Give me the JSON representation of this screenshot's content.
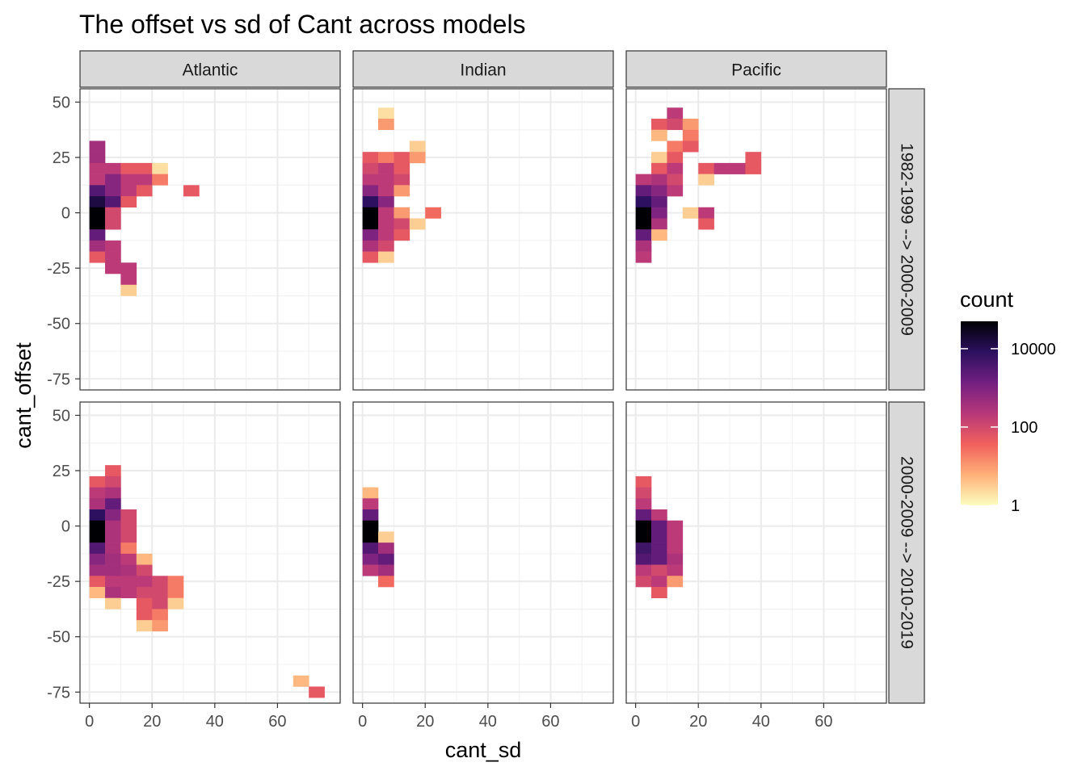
{
  "chart_data": {
    "type": "heatmap",
    "title": "The offset vs sd of Cant across models",
    "xlabel": "cant_sd",
    "ylabel": "cant_offset",
    "xlim": [
      -3,
      80
    ],
    "ylim": [
      -80,
      56
    ],
    "x_ticks": [
      0,
      20,
      40,
      60
    ],
    "y_ticks": [
      -75,
      -50,
      -25,
      0,
      25,
      50
    ],
    "bin_width_x": 5,
    "bin_height_y": 5,
    "facet_columns": [
      "Atlantic",
      "Indian",
      "Pacific"
    ],
    "facet_rows": [
      "1982-1999 --> 2000-2009",
      "2000-2009 --> 2010-2019"
    ],
    "legend": {
      "title": "count",
      "labels": [
        "10000",
        "100",
        "1"
      ],
      "label_values": [
        10000,
        100,
        1
      ],
      "scale": "log10",
      "range": [
        1,
        50000
      ],
      "palette": "magma-reversed",
      "colors": [
        "#FCFDBF",
        "#FEB078",
        "#F1605D",
        "#B73779",
        "#721F81",
        "#2C115F",
        "#000004"
      ]
    },
    "panels": [
      {
        "facet": "Atlantic",
        "period": "1982-1999 --> 2000-2009",
        "bins": [
          [
            2.5,
            30,
            400
          ],
          [
            2.5,
            25,
            400
          ],
          [
            2.5,
            20,
            200
          ],
          [
            7.5,
            20,
            200
          ],
          [
            12.5,
            20,
            50
          ],
          [
            17.5,
            20,
            50
          ],
          [
            22.5,
            20,
            2
          ],
          [
            2.5,
            15,
            200
          ],
          [
            7.5,
            15,
            800
          ],
          [
            12.5,
            15,
            200
          ],
          [
            17.5,
            15,
            200
          ],
          [
            22.5,
            15,
            20
          ],
          [
            2.5,
            10,
            3000
          ],
          [
            7.5,
            10,
            800
          ],
          [
            12.5,
            10,
            200
          ],
          [
            17.5,
            10,
            50
          ],
          [
            32.5,
            10,
            50
          ],
          [
            2.5,
            5,
            15000
          ],
          [
            7.5,
            5,
            3000
          ],
          [
            12.5,
            5,
            50
          ],
          [
            2.5,
            0,
            50000
          ],
          [
            7.5,
            0,
            100
          ],
          [
            2.5,
            -5,
            50000
          ],
          [
            7.5,
            -5,
            100
          ],
          [
            2.5,
            -10,
            2000
          ],
          [
            2.5,
            -15,
            400
          ],
          [
            7.5,
            -15,
            200
          ],
          [
            2.5,
            -20,
            50
          ],
          [
            7.5,
            -20,
            200
          ],
          [
            7.5,
            -25,
            200
          ],
          [
            12.5,
            -25,
            200
          ],
          [
            12.5,
            -30,
            200
          ],
          [
            12.5,
            -35,
            3
          ]
        ]
      },
      {
        "facet": "Indian",
        "period": "1982-1999 --> 2000-2009",
        "bins": [
          [
            7.5,
            45,
            2
          ],
          [
            7.5,
            40,
            10
          ],
          [
            17.5,
            30,
            3
          ],
          [
            2.5,
            25,
            50
          ],
          [
            7.5,
            25,
            20
          ],
          [
            12.5,
            25,
            50
          ],
          [
            17.5,
            25,
            10
          ],
          [
            2.5,
            20,
            100
          ],
          [
            7.5,
            20,
            200
          ],
          [
            12.5,
            20,
            50
          ],
          [
            2.5,
            15,
            200
          ],
          [
            7.5,
            15,
            200
          ],
          [
            12.5,
            15,
            100
          ],
          [
            2.5,
            10,
            800
          ],
          [
            7.5,
            10,
            200
          ],
          [
            12.5,
            10,
            10
          ],
          [
            2.5,
            5,
            8000
          ],
          [
            7.5,
            5,
            800
          ],
          [
            2.5,
            0,
            50000
          ],
          [
            7.5,
            0,
            200
          ],
          [
            12.5,
            0,
            10
          ],
          [
            22.5,
            0,
            30
          ],
          [
            2.5,
            -5,
            50000
          ],
          [
            7.5,
            -5,
            200
          ],
          [
            12.5,
            -5,
            100
          ],
          [
            17.5,
            -5,
            3
          ],
          [
            2.5,
            -10,
            1000
          ],
          [
            7.5,
            -10,
            200
          ],
          [
            12.5,
            -10,
            50
          ],
          [
            2.5,
            -15,
            300
          ],
          [
            7.5,
            -15,
            100
          ],
          [
            2.5,
            -20,
            50
          ],
          [
            7.5,
            -20,
            3
          ]
        ]
      },
      {
        "facet": "Pacific",
        "period": "1982-1999 --> 2000-2009",
        "bins": [
          [
            12.5,
            45,
            200
          ],
          [
            7.5,
            40,
            50
          ],
          [
            12.5,
            40,
            100
          ],
          [
            17.5,
            40,
            10
          ],
          [
            7.5,
            35,
            5
          ],
          [
            17.5,
            35,
            20
          ],
          [
            12.5,
            30,
            20
          ],
          [
            17.5,
            30,
            50
          ],
          [
            7.5,
            25,
            3
          ],
          [
            12.5,
            25,
            50
          ],
          [
            37.5,
            25,
            50
          ],
          [
            7.5,
            20,
            50
          ],
          [
            12.5,
            20,
            200
          ],
          [
            22.5,
            20,
            50
          ],
          [
            27.5,
            20,
            200
          ],
          [
            32.5,
            20,
            200
          ],
          [
            37.5,
            20,
            50
          ],
          [
            2.5,
            15,
            200
          ],
          [
            7.5,
            15,
            300
          ],
          [
            12.5,
            15,
            100
          ],
          [
            22.5,
            15,
            3
          ],
          [
            2.5,
            10,
            2000
          ],
          [
            7.5,
            10,
            800
          ],
          [
            12.5,
            10,
            200
          ],
          [
            2.5,
            5,
            8000
          ],
          [
            7.5,
            5,
            2000
          ],
          [
            2.5,
            0,
            50000
          ],
          [
            7.5,
            0,
            1000
          ],
          [
            17.5,
            0,
            3
          ],
          [
            22.5,
            0,
            200
          ],
          [
            2.5,
            -5,
            50000
          ],
          [
            7.5,
            -5,
            300
          ],
          [
            22.5,
            -5,
            50
          ],
          [
            2.5,
            -10,
            2000
          ],
          [
            7.5,
            -10,
            5
          ],
          [
            2.5,
            -15,
            300
          ],
          [
            2.5,
            -20,
            200
          ]
        ]
      },
      {
        "facet": "Atlantic",
        "period": "2000-2009 --> 2010-2019",
        "bins": [
          [
            7.5,
            25,
            50
          ],
          [
            2.5,
            20,
            50
          ],
          [
            7.5,
            20,
            100
          ],
          [
            2.5,
            15,
            200
          ],
          [
            7.5,
            15,
            300
          ],
          [
            2.5,
            10,
            300
          ],
          [
            7.5,
            10,
            2000
          ],
          [
            2.5,
            5,
            8000
          ],
          [
            7.5,
            5,
            800
          ],
          [
            12.5,
            5,
            100
          ],
          [
            2.5,
            0,
            50000
          ],
          [
            7.5,
            0,
            300
          ],
          [
            12.5,
            0,
            100
          ],
          [
            2.5,
            -5,
            50000
          ],
          [
            7.5,
            -5,
            300
          ],
          [
            12.5,
            -5,
            100
          ],
          [
            2.5,
            -10,
            3000
          ],
          [
            7.5,
            -10,
            300
          ],
          [
            12.5,
            -10,
            20
          ],
          [
            2.5,
            -15,
            800
          ],
          [
            7.5,
            -15,
            400
          ],
          [
            12.5,
            -15,
            200
          ],
          [
            17.5,
            -15,
            5
          ],
          [
            2.5,
            -20,
            400
          ],
          [
            7.5,
            -20,
            400
          ],
          [
            12.5,
            -20,
            300
          ],
          [
            17.5,
            -20,
            100
          ],
          [
            2.5,
            -25,
            50
          ],
          [
            7.5,
            -25,
            200
          ],
          [
            12.5,
            -25,
            200
          ],
          [
            17.5,
            -25,
            200
          ],
          [
            22.5,
            -25,
            100
          ],
          [
            27.5,
            -25,
            20
          ],
          [
            2.5,
            -30,
            5
          ],
          [
            7.5,
            -30,
            300
          ],
          [
            12.5,
            -30,
            200
          ],
          [
            17.5,
            -30,
            100
          ],
          [
            22.5,
            -30,
            100
          ],
          [
            27.5,
            -30,
            20
          ],
          [
            7.5,
            -35,
            3
          ],
          [
            17.5,
            -35,
            50
          ],
          [
            22.5,
            -35,
            100
          ],
          [
            27.5,
            -35,
            3
          ],
          [
            17.5,
            -40,
            50
          ],
          [
            22.5,
            -40,
            20
          ],
          [
            17.5,
            -45,
            3
          ],
          [
            22.5,
            -45,
            10
          ],
          [
            67.5,
            -70,
            5
          ],
          [
            72.5,
            -75,
            50
          ]
        ]
      },
      {
        "facet": "Indian",
        "period": "2000-2009 --> 2010-2019",
        "bins": [
          [
            2.5,
            15,
            5
          ],
          [
            2.5,
            10,
            200
          ],
          [
            2.5,
            5,
            2000
          ],
          [
            2.5,
            0,
            50000
          ],
          [
            2.5,
            -5,
            50000
          ],
          [
            7.5,
            -5,
            3
          ],
          [
            2.5,
            -10,
            3000
          ],
          [
            7.5,
            -10,
            400
          ],
          [
            2.5,
            -15,
            1000
          ],
          [
            7.5,
            -15,
            2000
          ],
          [
            2.5,
            -20,
            200
          ],
          [
            7.5,
            -20,
            400
          ],
          [
            7.5,
            -25,
            30
          ]
        ]
      },
      {
        "facet": "Pacific",
        "period": "2000-2009 --> 2010-2019",
        "bins": [
          [
            2.5,
            20,
            50
          ],
          [
            2.5,
            15,
            100
          ],
          [
            2.5,
            10,
            200
          ],
          [
            2.5,
            5,
            2000
          ],
          [
            7.5,
            5,
            200
          ],
          [
            2.5,
            0,
            50000
          ],
          [
            7.5,
            0,
            2000
          ],
          [
            12.5,
            0,
            200
          ],
          [
            2.5,
            -5,
            50000
          ],
          [
            7.5,
            -5,
            2000
          ],
          [
            12.5,
            -5,
            200
          ],
          [
            2.5,
            -10,
            5000
          ],
          [
            7.5,
            -10,
            2000
          ],
          [
            12.5,
            -10,
            200
          ],
          [
            2.5,
            -15,
            3000
          ],
          [
            7.5,
            -15,
            2000
          ],
          [
            12.5,
            -15,
            300
          ],
          [
            2.5,
            -20,
            200
          ],
          [
            7.5,
            -20,
            100
          ],
          [
            12.5,
            -20,
            200
          ],
          [
            2.5,
            -25,
            100
          ],
          [
            7.5,
            -25,
            200
          ],
          [
            12.5,
            -25,
            10
          ],
          [
            7.5,
            -30,
            50
          ]
        ]
      }
    ]
  }
}
